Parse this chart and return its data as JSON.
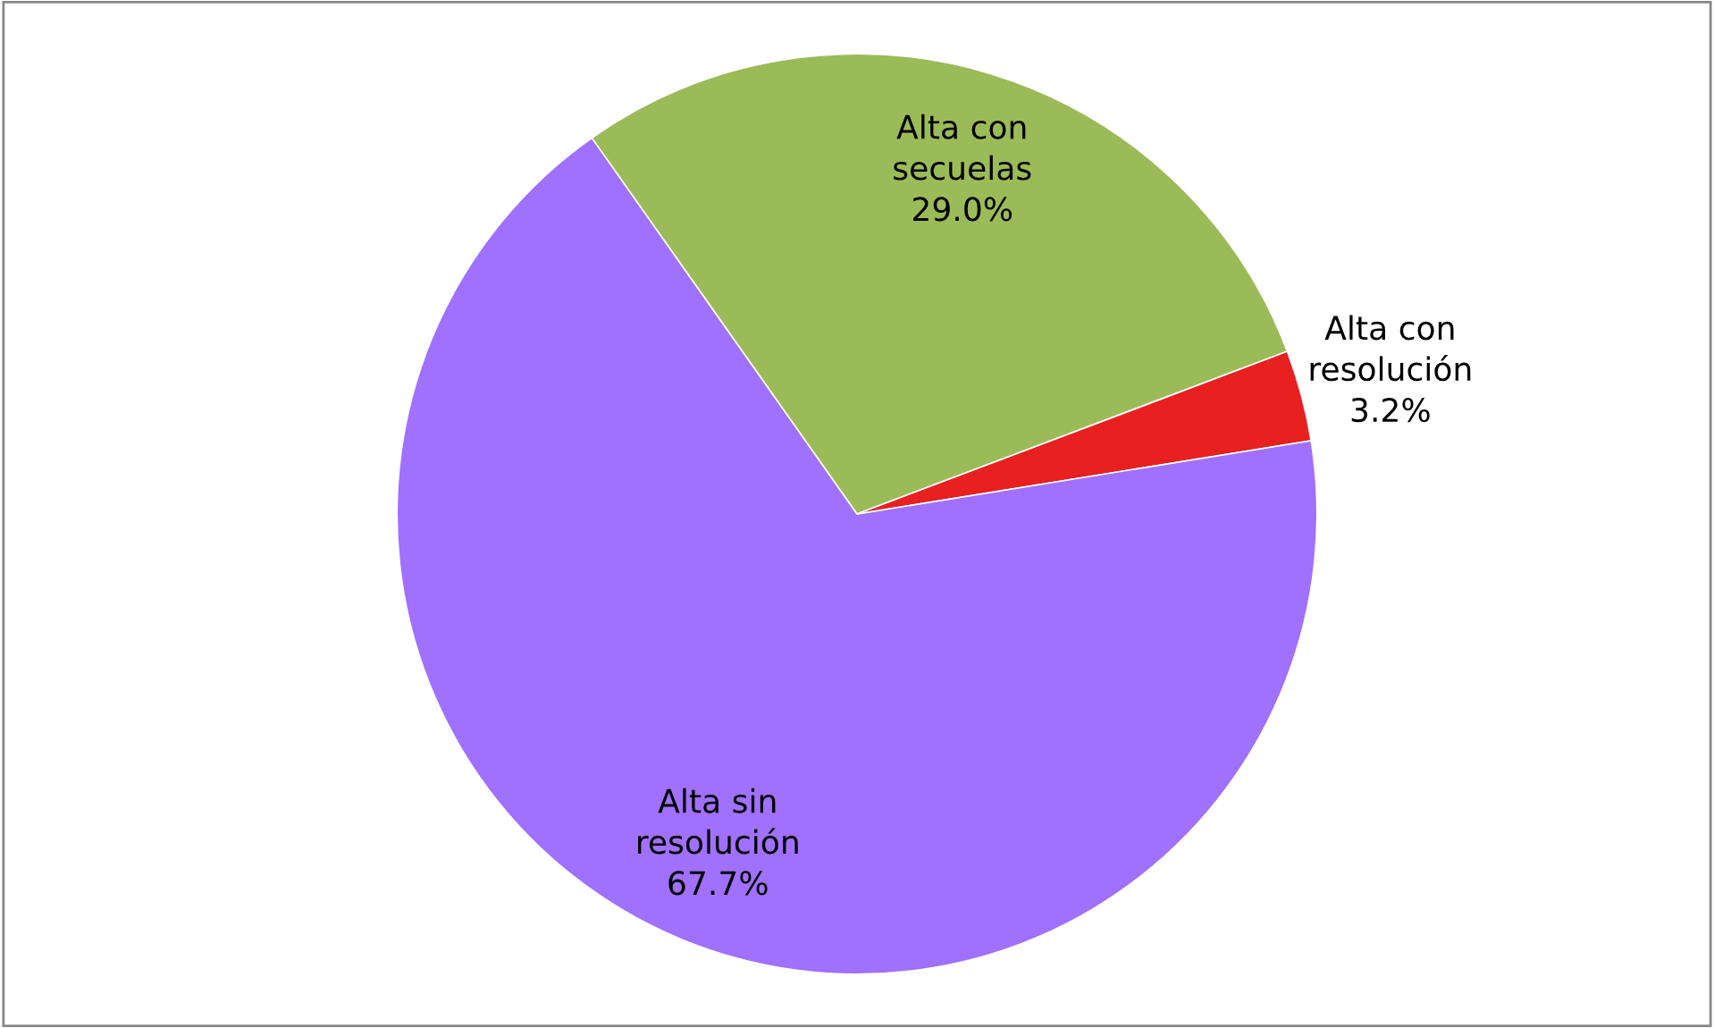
{
  "chart_data": {
    "type": "pie",
    "categories": [
      "Alta con secuelas",
      "Alta con resolución",
      "Alta sin resolución"
    ],
    "values": [
      29.0,
      3.2,
      67.7
    ],
    "value_labels": [
      "29.0%",
      "3.2%",
      "67.7%"
    ],
    "colors": [
      "#9bbb59",
      "#e82020",
      "#a070ff"
    ],
    "legend": false
  }
}
